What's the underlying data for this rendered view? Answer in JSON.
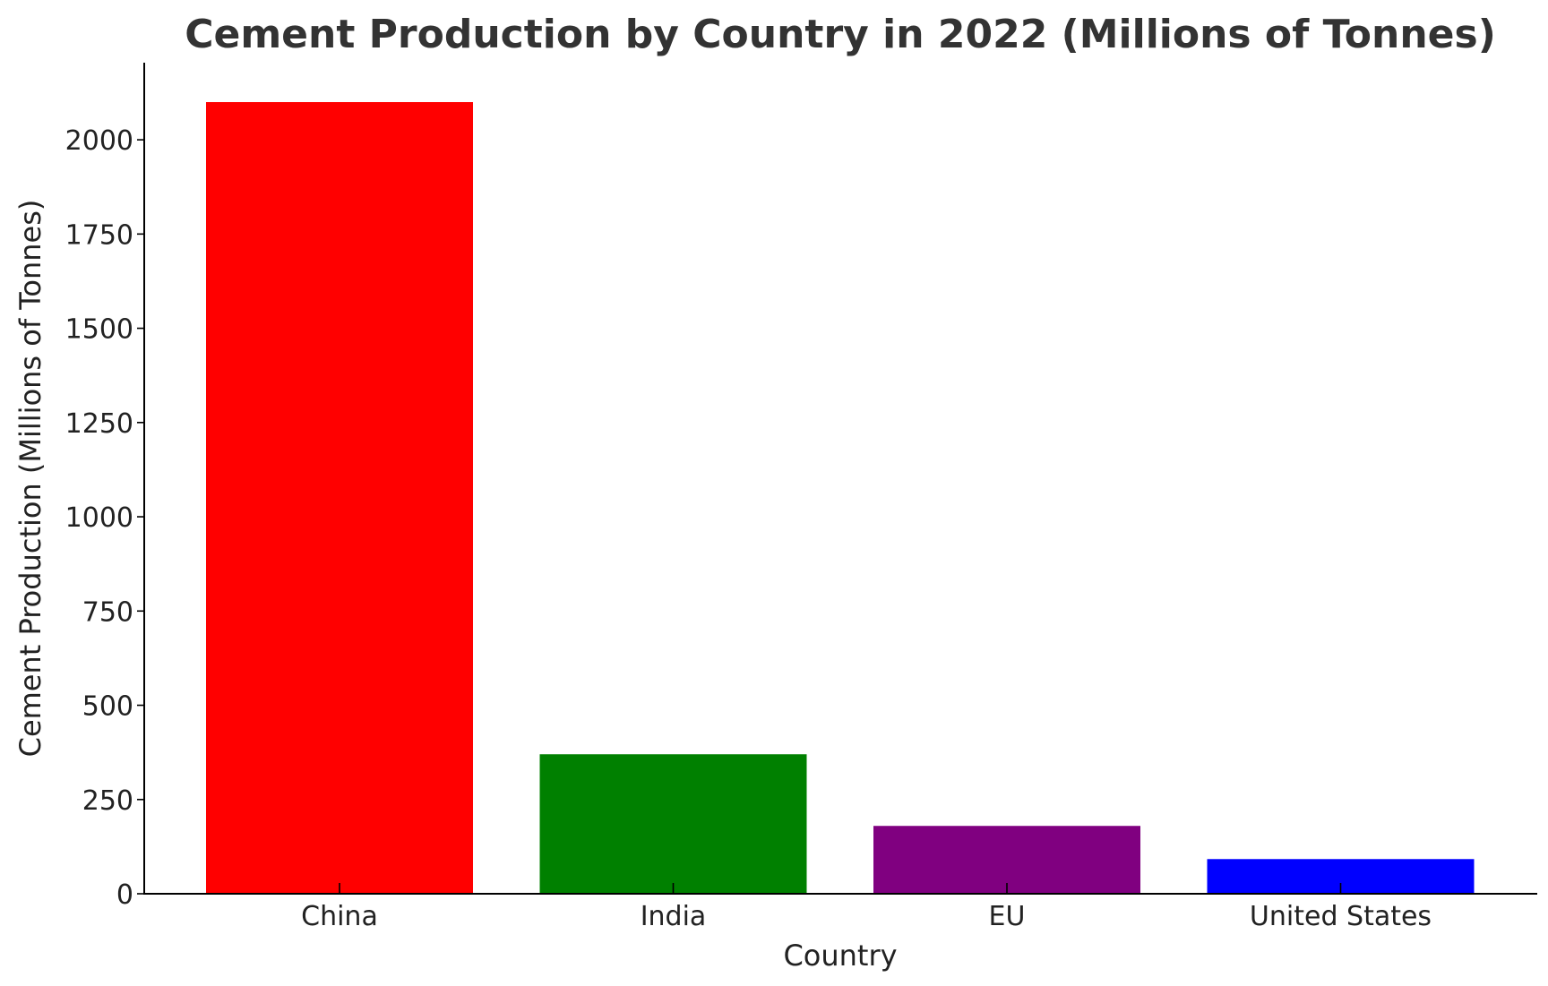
{
  "chart_data": {
    "type": "bar",
    "title": "Cement Production by Country in 2022 (Millions of Tonnes)",
    "xlabel": "Country",
    "ylabel": "Cement Production (Millions of Tonnes)",
    "categories": [
      "China",
      "India",
      "EU",
      "United States"
    ],
    "values": [
      2100,
      370,
      180,
      92
    ],
    "colors": [
      "#ff0000",
      "#008000",
      "#800080",
      "#0000ff"
    ],
    "ylim": [
      0,
      2200
    ],
    "yticks": [
      0,
      250,
      500,
      750,
      1000,
      1250,
      1500,
      1750,
      2000
    ],
    "grid": false,
    "legend": "none"
  }
}
